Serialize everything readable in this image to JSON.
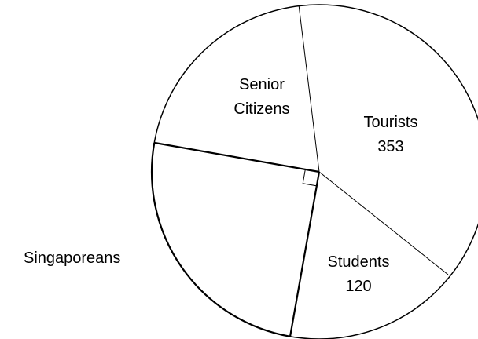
{
  "chart_data": {
    "type": "pie",
    "title": "",
    "slices": [
      {
        "label": "Tourists",
        "value": 353,
        "value_label": "353"
      },
      {
        "label": "Students",
        "value": 120,
        "value_label": "120"
      },
      {
        "label": "Singaporeans",
        "value": null,
        "value_label": "",
        "note": "right angle"
      },
      {
        "label": "Senior Citizens",
        "value": null,
        "value_label": ""
      }
    ],
    "right_angle_marker": "Singaporeans",
    "colors": {
      "fill": "#ffffff",
      "stroke": "#000000"
    }
  },
  "labels": {
    "tourists_name": "Tourists",
    "tourists_value": "353",
    "students_name": "Students",
    "students_value": "120",
    "senior_line1": "Senior",
    "senior_line2": "Citizens",
    "singaporeans": "Singaporeans"
  }
}
